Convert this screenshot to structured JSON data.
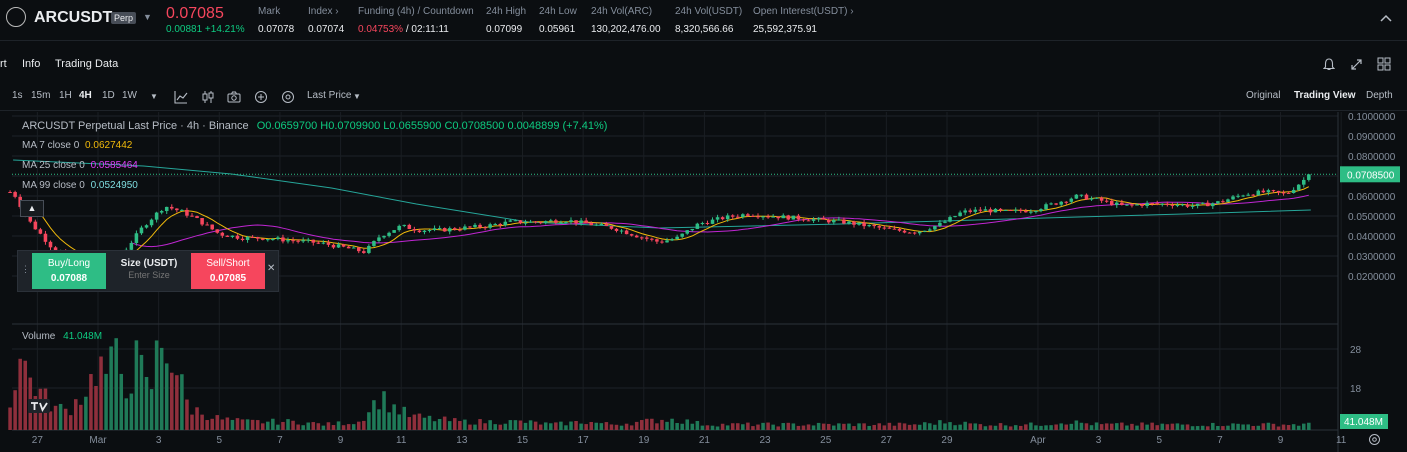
{
  "header": {
    "symbol": "ARCUSDT",
    "badge": "Perp",
    "last_price": "0.07085",
    "change": "0.00881 +14.21%",
    "stats": [
      {
        "label": "Mark",
        "value": "0.07078"
      },
      {
        "label": "Index ›",
        "value": "0.07074"
      },
      {
        "label": "Funding (4h) / Countdown",
        "value_red": "0.04753%",
        "value_rest": " / 02:11:11"
      },
      {
        "label": "24h High",
        "value": "0.07099"
      },
      {
        "label": "24h Low",
        "value": "0.05961"
      },
      {
        "label": "24h Vol(ARC)",
        "value": "130,202,476.00"
      },
      {
        "label": "24h Vol(USDT)",
        "value": "8,320,566.66"
      },
      {
        "label": "Open Interest(USDT) ›",
        "value": "25,592,375.91"
      }
    ]
  },
  "tabs": {
    "chart": "rt",
    "info": "Info",
    "trading_data": "Trading Data"
  },
  "toolbar": {
    "intervals": [
      "1s",
      "15m",
      "1H",
      "4H",
      "1D",
      "1W"
    ],
    "active_interval": "4H",
    "price_type": "Last Price",
    "views": [
      "Original",
      "Trading View",
      "Depth"
    ],
    "active_view": "Trading View"
  },
  "legend": {
    "title": "ARCUSDT Perpetual Last Price · 4h · Binance",
    "ohlc": "O0.0659700 H0.0709900 L0.0655900 C0.0708500 0.0048899 (+7.41%)",
    "ma7_label": "MA 7 close 0",
    "ma7_value": "0.0627442",
    "ma25_label": "MA 25 close 0",
    "ma25_value": "0.0585464",
    "ma99_label": "MA 99 close 0",
    "ma99_value": "0.0524950"
  },
  "order": {
    "buy_label": "Buy/Long",
    "buy_price": "0.07088",
    "size_label": "Size (USDT)",
    "size_placeholder": "Enter Size",
    "sell_label": "Sell/Short",
    "sell_price": "0.07085"
  },
  "volume": {
    "label": "Volume",
    "value": "41.048M",
    "axis": [
      "28",
      "18"
    ],
    "current_tag": "41.048M"
  },
  "colors": {
    "up": "#2ebd85",
    "down": "#f6465d",
    "ma7": "#f0b90b",
    "ma25": "#c026d3",
    "ma99": "#26a69a"
  },
  "chart_data": {
    "type": "candlestick",
    "price_axis": [
      "0.1000000",
      "0.0900000",
      "0.0800000",
      "0.0700000",
      "0.0600000",
      "0.0500000",
      "0.0400000",
      "0.0300000",
      "0.0200000"
    ],
    "current_price_tag": "0.0708500",
    "x_labels": [
      "27",
      "Mar",
      "3",
      "5",
      "7",
      "9",
      "11",
      "13",
      "15",
      "17",
      "19",
      "21",
      "23",
      "25",
      "27",
      "29",
      "Apr",
      "3",
      "5",
      "7",
      "9",
      "11"
    ],
    "x_label_days": [
      -2,
      0,
      2,
      4,
      6,
      8,
      10,
      12,
      14,
      16,
      18,
      20,
      22,
      24,
      26,
      28,
      31,
      33,
      35,
      37,
      39,
      41
    ],
    "close_series_by_day": [
      [
        -2.8,
        0.062
      ],
      [
        -2.3,
        0.048
      ],
      [
        -1.5,
        0.034
      ],
      [
        -0.7,
        0.029
      ],
      [
        0.2,
        0.027
      ],
      [
        0.8,
        0.031
      ],
      [
        1.5,
        0.045
      ],
      [
        2.2,
        0.055
      ],
      [
        2.8,
        0.052
      ],
      [
        3.3,
        0.048
      ],
      [
        4,
        0.041
      ],
      [
        4.8,
        0.039
      ],
      [
        5.5,
        0.039
      ],
      [
        6.2,
        0.038
      ],
      [
        7,
        0.037
      ],
      [
        7.5,
        0.036
      ],
      [
        8.2,
        0.034
      ],
      [
        8.8,
        0.032
      ],
      [
        9.3,
        0.04
      ],
      [
        10,
        0.045
      ],
      [
        10.6,
        0.043
      ],
      [
        11.3,
        0.043
      ],
      [
        12,
        0.044
      ],
      [
        12.8,
        0.045
      ],
      [
        13.6,
        0.047
      ],
      [
        14.5,
        0.047
      ],
      [
        15.4,
        0.048
      ],
      [
        16.2,
        0.046
      ],
      [
        17,
        0.044
      ],
      [
        17.8,
        0.04
      ],
      [
        18.5,
        0.037
      ],
      [
        19.1,
        0.039
      ],
      [
        19.8,
        0.046
      ],
      [
        20.6,
        0.049
      ],
      [
        21.4,
        0.051
      ],
      [
        22.2,
        0.05
      ],
      [
        23,
        0.049
      ],
      [
        23.8,
        0.048
      ],
      [
        24.6,
        0.047
      ],
      [
        25.4,
        0.045
      ],
      [
        26.2,
        0.043
      ],
      [
        27,
        0.042
      ],
      [
        27.8,
        0.046
      ],
      [
        28.5,
        0.052
      ],
      [
        29.2,
        0.053
      ],
      [
        30,
        0.052
      ],
      [
        30.8,
        0.053
      ],
      [
        31.5,
        0.056
      ],
      [
        32.3,
        0.06
      ],
      [
        33,
        0.058
      ],
      [
        33.8,
        0.055
      ],
      [
        34.6,
        0.056
      ],
      [
        35.4,
        0.056
      ],
      [
        36.2,
        0.055
      ],
      [
        37,
        0.057
      ],
      [
        37.8,
        0.061
      ],
      [
        38.5,
        0.062
      ],
      [
        39.2,
        0.061
      ],
      [
        39.6,
        0.066
      ],
      [
        40,
        0.0708
      ]
    ],
    "ma99_by_day": [
      [
        -2.8,
        0.078
      ],
      [
        1.5,
        0.075
      ],
      [
        4.4,
        0.071
      ],
      [
        7.7,
        0.064
      ],
      [
        10.5,
        0.056
      ],
      [
        14.2,
        0.047
      ],
      [
        18.5,
        0.044
      ],
      [
        24.5,
        0.046
      ],
      [
        31.2,
        0.049
      ],
      [
        35.8,
        0.051
      ],
      [
        40,
        0.053
      ]
    ],
    "volume_by_day": [
      [
        -2.9,
        10
      ],
      [
        -2.6,
        27
      ],
      [
        -2.2,
        18
      ],
      [
        -1.8,
        12
      ],
      [
        -1.4,
        8
      ],
      [
        -1,
        7
      ],
      [
        -0.6,
        12
      ],
      [
        -0.3,
        16
      ],
      [
        0,
        24
      ],
      [
        0.3,
        20
      ],
      [
        0.6,
        26
      ],
      [
        1,
        15
      ],
      [
        1.3,
        26
      ],
      [
        1.7,
        12
      ],
      [
        2,
        31
      ],
      [
        2.3,
        30
      ],
      [
        2.7,
        18
      ],
      [
        3,
        8
      ],
      [
        3.5,
        6
      ],
      [
        4,
        4
      ],
      [
        4.8,
        3
      ],
      [
        5.6,
        3
      ],
      [
        6.5,
        3
      ],
      [
        7.5,
        2
      ],
      [
        8.6,
        3
      ],
      [
        9.3,
        12
      ],
      [
        9.8,
        8
      ],
      [
        10.3,
        5
      ],
      [
        11,
        4
      ],
      [
        12,
        3
      ],
      [
        13,
        3
      ],
      [
        14,
        3
      ],
      [
        15,
        2
      ],
      [
        16,
        3
      ],
      [
        17,
        2
      ],
      [
        18,
        3
      ],
      [
        18.8,
        4
      ],
      [
        19.5,
        3
      ],
      [
        20,
        2
      ],
      [
        21,
        2
      ],
      [
        22,
        2
      ],
      [
        23,
        2
      ],
      [
        24,
        2
      ],
      [
        25,
        2
      ],
      [
        26,
        2
      ],
      [
        27,
        2
      ],
      [
        28,
        3
      ],
      [
        29,
        2
      ],
      [
        30,
        2
      ],
      [
        31,
        2
      ],
      [
        32,
        3
      ],
      [
        33,
        2
      ],
      [
        34,
        2
      ],
      [
        35,
        2
      ],
      [
        36,
        2
      ],
      [
        37,
        2
      ],
      [
        38,
        2
      ],
      [
        39,
        2
      ],
      [
        40,
        2
      ]
    ]
  }
}
